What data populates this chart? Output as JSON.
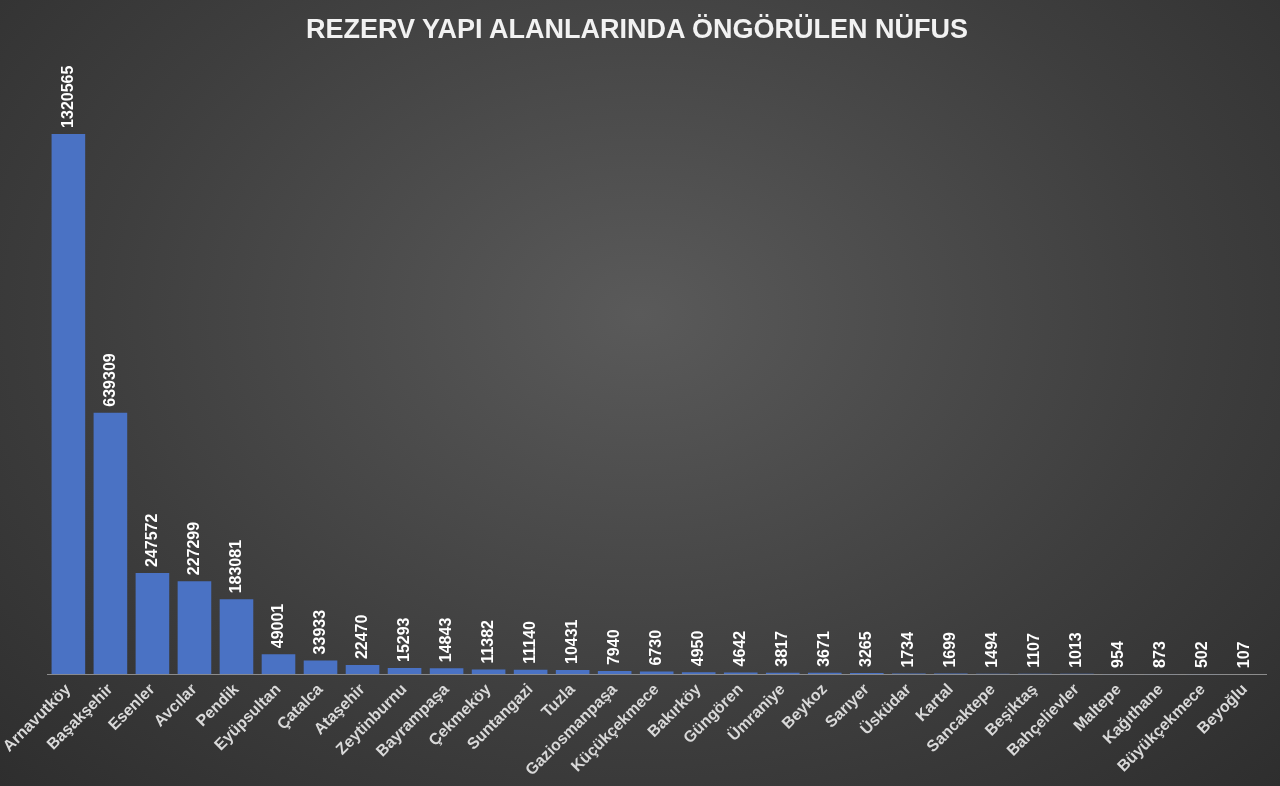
{
  "chart_data": {
    "type": "bar",
    "title": "REZERV YAPI ALANLARINDA ÖNGÖRÜLEN NÜFUS",
    "categories": [
      "Arnavutköy",
      "Başakşehir",
      "Esenler",
      "Avcılar",
      "Pendik",
      "Eyüpsultan",
      "Çatalca",
      "Ataşehir",
      "Zeytinburnu",
      "Bayrampaşa",
      "Çekmeköy",
      "Suntangazi",
      "Tuzla",
      "Gaziosmanpaşa",
      "Küçükçekmece",
      "Bakırköy",
      "Güngören",
      "Ümraniye",
      "Beykoz",
      "Sarıyer",
      "Üsküdar",
      "Kartal",
      "Sancaktepe",
      "Beşiktaş",
      "Bahçelievler",
      "Maltepe",
      "Kağıthane",
      "Büyükçekmece",
      "Beyoğlu"
    ],
    "values": [
      1320565,
      639309,
      247572,
      227299,
      183081,
      49001,
      33933,
      22470,
      15293,
      14843,
      11382,
      11140,
      10431,
      7940,
      6730,
      4950,
      4642,
      3817,
      3671,
      3265,
      1734,
      1699,
      1494,
      1107,
      1013,
      954,
      873,
      502,
      107
    ],
    "color": "#4a72c4",
    "data_labels": true,
    "grid": false,
    "legend": false
  }
}
